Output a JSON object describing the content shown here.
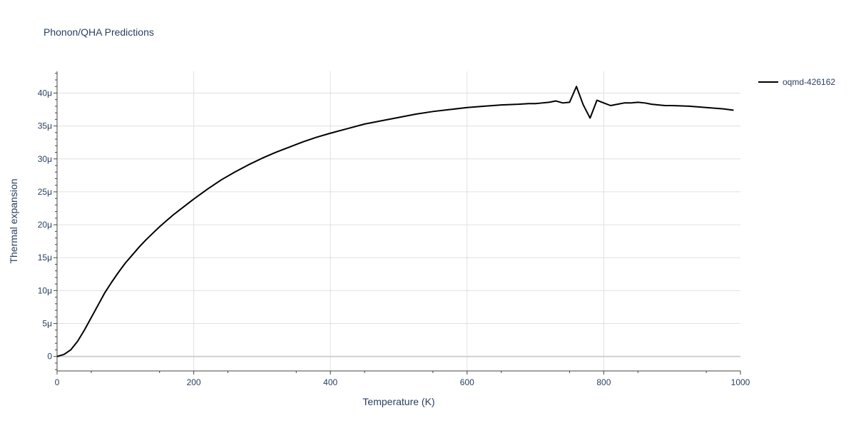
{
  "chart_data": {
    "type": "line",
    "title": "Phonon/QHA Predictions",
    "xlabel": "Temperature (K)",
    "ylabel": "Thermal expansion",
    "xlim": [
      0,
      1000
    ],
    "ylim": [
      -2.2e-06,
      4.33e-05
    ],
    "x_ticks": [
      0,
      200,
      400,
      600,
      800,
      1000
    ],
    "x_tick_labels": [
      "0",
      "200",
      "400",
      "600",
      "800",
      "1000"
    ],
    "y_ticks": [
      0,
      5e-06,
      1e-05,
      1.5e-05,
      2e-05,
      2.5e-05,
      3e-05,
      3.5e-05,
      4e-05
    ],
    "y_tick_labels": [
      "0",
      "5μ",
      "10μ",
      "15μ",
      "20μ",
      "25μ",
      "30μ",
      "35μ",
      "40μ"
    ],
    "grid": true,
    "legend_position": "top-right",
    "series": [
      {
        "name": "oqmd-426162",
        "color": "#000000",
        "x": [
          0,
          10,
          20,
          30,
          40,
          50,
          60,
          70,
          80,
          90,
          100,
          110,
          120,
          130,
          140,
          150,
          160,
          170,
          180,
          190,
          200,
          220,
          240,
          260,
          280,
          300,
          320,
          340,
          360,
          380,
          400,
          425,
          450,
          475,
          500,
          525,
          550,
          575,
          600,
          625,
          650,
          675,
          690,
          700,
          710,
          720,
          730,
          740,
          750,
          760,
          770,
          780,
          790,
          800,
          810,
          820,
          830,
          840,
          850,
          860,
          870,
          880,
          890,
          900,
          925,
          950,
          975,
          990
        ],
        "y": [
          0.0,
          3e-07,
          1e-06,
          2.3e-06,
          4e-06,
          5.9e-06,
          7.8e-06,
          9.7e-06,
          1.13e-05,
          1.28e-05,
          1.42e-05,
          1.54e-05,
          1.66e-05,
          1.77e-05,
          1.87e-05,
          1.97e-05,
          2.06e-05,
          2.15e-05,
          2.23e-05,
          2.31e-05,
          2.39e-05,
          2.54e-05,
          2.68e-05,
          2.8e-05,
          2.91e-05,
          3.01e-05,
          3.1e-05,
          3.18e-05,
          3.26e-05,
          3.33e-05,
          3.39e-05,
          3.46e-05,
          3.53e-05,
          3.58e-05,
          3.63e-05,
          3.68e-05,
          3.72e-05,
          3.75e-05,
          3.78e-05,
          3.8e-05,
          3.82e-05,
          3.83e-05,
          3.84e-05,
          3.84e-05,
          3.85e-05,
          3.86e-05,
          3.88e-05,
          3.85e-05,
          3.86e-05,
          4.1e-05,
          3.82e-05,
          3.62e-05,
          3.89e-05,
          3.85e-05,
          3.81e-05,
          3.83e-05,
          3.85e-05,
          3.85e-05,
          3.86e-05,
          3.85e-05,
          3.83e-05,
          3.82e-05,
          3.81e-05,
          3.81e-05,
          3.8e-05,
          3.78e-05,
          3.76e-05,
          3.74e-05
        ]
      }
    ]
  }
}
